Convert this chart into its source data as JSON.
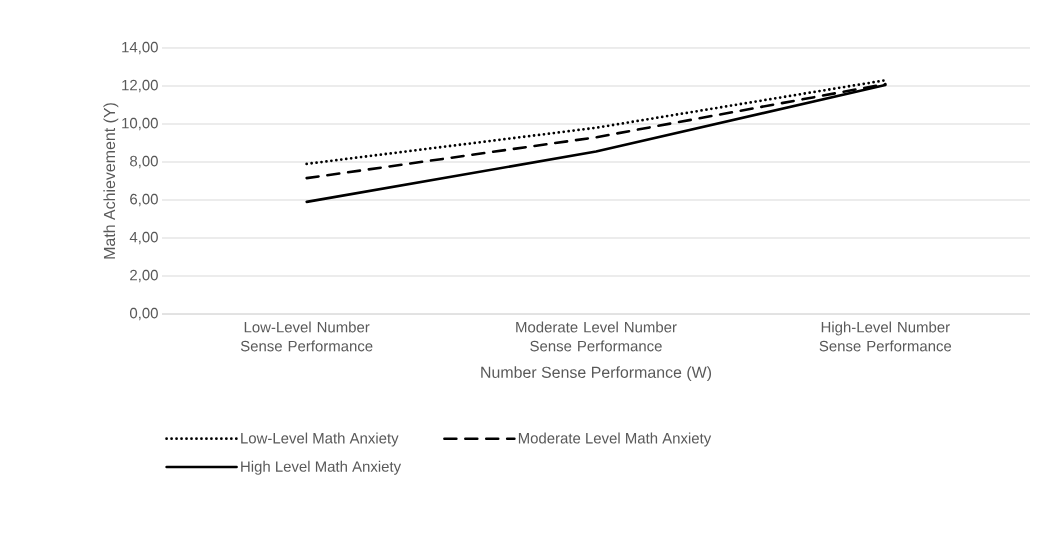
{
  "chart_data": {
    "type": "line",
    "xlabel": "Number Sense Performance  (W)",
    "ylabel": "Math Achievement (Y)",
    "categories": [
      "Low-Level Number Sense Performance",
      "Moderate Level Number Sense Performance",
      "High-Level Number Sense Performance"
    ],
    "series": [
      {
        "name": "Low-Level Math Anxiety",
        "color": "#000000",
        "line_style": "dotted",
        "values": [
          7.9,
          9.8,
          12.3
        ]
      },
      {
        "name": "Moderate Level Math Anxiety",
        "color": "#000000",
        "line_style": "dashed",
        "values": [
          7.15,
          9.3,
          12.1
        ]
      },
      {
        "name": "High Level Math Anxiety",
        "color": "#000000",
        "line_style": "solid",
        "values": [
          5.9,
          8.55,
          12.05
        ]
      }
    ],
    "ylim": [
      0,
      14
    ],
    "yticks": [
      {
        "value": 0,
        "label": "0,00"
      },
      {
        "value": 2,
        "label": "2,00"
      },
      {
        "value": 4,
        "label": "4,00"
      },
      {
        "value": 6,
        "label": "6,00"
      },
      {
        "value": 8,
        "label": "8,00"
      },
      {
        "value": 10,
        "label": "10,00"
      },
      {
        "value": 12,
        "label": "12,00"
      },
      {
        "value": 14,
        "label": "14,00"
      }
    ],
    "grid": "y",
    "legend": "bottom",
    "marker": "none"
  }
}
